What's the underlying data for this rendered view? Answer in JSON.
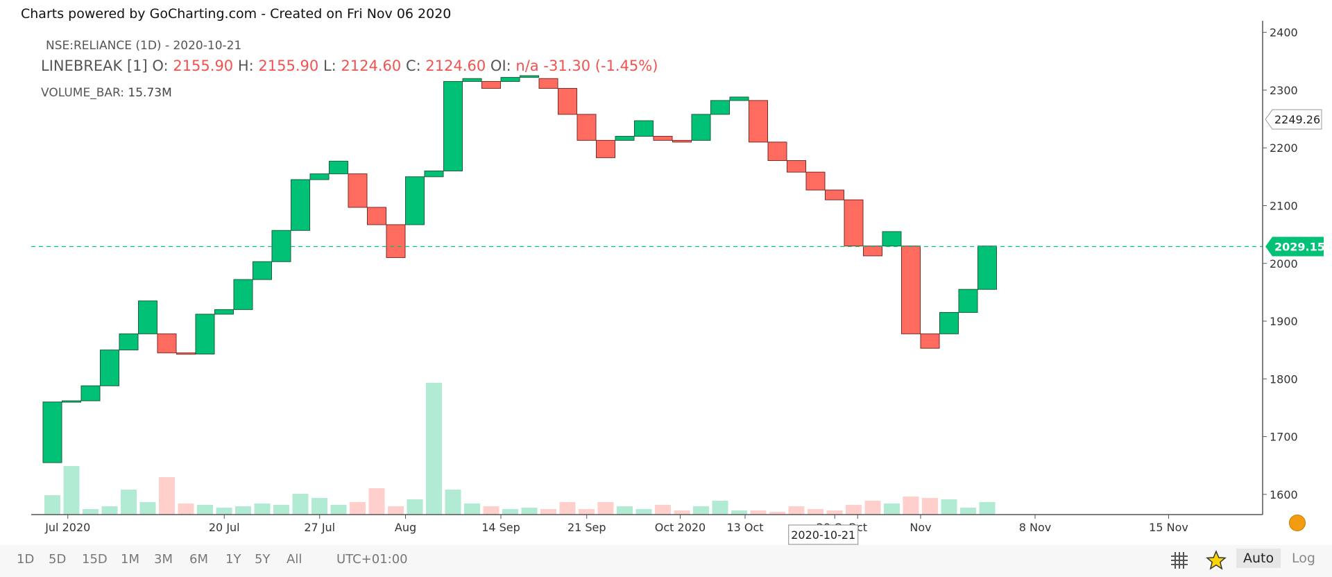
{
  "header": {
    "powered_by": "Charts powered by GoCharting.com - Created on Fri Nov 06 2020"
  },
  "legend": {
    "symbol": "NSE:RELIANCE (1D) - 2020-10-21",
    "study": "LINEBREAK [1]",
    "o_label": "O:",
    "o": "2155.90",
    "h_label": "H:",
    "h": "2155.90",
    "l_label": "L:",
    "l": "2124.60",
    "c_label": "C:",
    "c": "2124.60",
    "oi_label": "OI:",
    "oi": "n/a",
    "change": "-31.30",
    "change_pct": "(-1.45%)",
    "volume_label": "VOLUME_BAR:",
    "volume": "15.73M"
  },
  "toolbar": {
    "ranges": [
      "1D",
      "5D",
      "15D",
      "1M",
      "3M",
      "6M",
      "1Y",
      "5Y",
      "All"
    ],
    "timezone": "UTC+01:00",
    "auto": "Auto",
    "log": "Log"
  },
  "colors": {
    "up": "#00c176",
    "down": "#ff6b5f",
    "up_border": "#1b5e3a",
    "down_border": "#7a2a25",
    "vol_up": "#b2ebd4",
    "vol_down": "#ffcfcc",
    "last_price": "#00c176"
  },
  "chart_data": {
    "type": "linebreak",
    "y_range": [
      1565,
      2420
    ],
    "y_ticks": [
      1600,
      1700,
      1800,
      1900,
      2000,
      2100,
      2200,
      2300,
      2400
    ],
    "x_labels": [
      "Jul 2020",
      "20 Jul",
      "27 Jul",
      "Aug",
      "14 Sep",
      "21 Sep",
      "Oct 2020",
      "13 Oct",
      "20 Oct",
      "Oct",
      "Nov",
      "8 Nov",
      "15 Nov"
    ],
    "x_label_slots": [
      1.3,
      9.5,
      14.5,
      19.0,
      24.0,
      28.5,
      33.4,
      36.8,
      41.5,
      42.7,
      46.0,
      52.0,
      59.0
    ],
    "crosshair_label": "2020-10-21",
    "crosshair_slot": 40.9,
    "hover_price": "2249.26",
    "hover_price_value": 2249.26,
    "last_price": "2029.15",
    "last_price_value": 2029.15,
    "bricks": [
      {
        "open": 1655,
        "close": 1760
      },
      {
        "open": 1760,
        "close": 1762
      },
      {
        "open": 1762,
        "close": 1788
      },
      {
        "open": 1788,
        "close": 1850
      },
      {
        "open": 1850,
        "close": 1878
      },
      {
        "open": 1878,
        "close": 1935
      },
      {
        "open": 1878,
        "close": 1845
      },
      {
        "open": 1845,
        "close": 1843
      },
      {
        "open": 1843,
        "close": 1912
      },
      {
        "open": 1912,
        "close": 1920
      },
      {
        "open": 1920,
        "close": 1972
      },
      {
        "open": 1972,
        "close": 2003
      },
      {
        "open": 2003,
        "close": 2057
      },
      {
        "open": 2057,
        "close": 2145
      },
      {
        "open": 2145,
        "close": 2155
      },
      {
        "open": 2155,
        "close": 2177
      },
      {
        "open": 2155,
        "close": 2097
      },
      {
        "open": 2097,
        "close": 2067
      },
      {
        "open": 2067,
        "close": 2010
      },
      {
        "open": 2067,
        "close": 2150
      },
      {
        "open": 2150,
        "close": 2160
      },
      {
        "open": 2160,
        "close": 2315
      },
      {
        "open": 2315,
        "close": 2320
      },
      {
        "open": 2315,
        "close": 2303
      },
      {
        "open": 2315,
        "close": 2322
      },
      {
        "open": 2322,
        "close": 2325
      },
      {
        "open": 2320,
        "close": 2303
      },
      {
        "open": 2303,
        "close": 2258
      },
      {
        "open": 2258,
        "close": 2213
      },
      {
        "open": 2213,
        "close": 2183
      },
      {
        "open": 2213,
        "close": 2220
      },
      {
        "open": 2220,
        "close": 2247
      },
      {
        "open": 2220,
        "close": 2213
      },
      {
        "open": 2213,
        "close": 2210
      },
      {
        "open": 2213,
        "close": 2258
      },
      {
        "open": 2258,
        "close": 2282
      },
      {
        "open": 2282,
        "close": 2288
      },
      {
        "open": 2282,
        "close": 2210
      },
      {
        "open": 2210,
        "close": 2178
      },
      {
        "open": 2178,
        "close": 2158
      },
      {
        "open": 2158,
        "close": 2127
      },
      {
        "open": 2127,
        "close": 2110
      },
      {
        "open": 2110,
        "close": 2030
      },
      {
        "open": 2030,
        "close": 2013
      },
      {
        "open": 2030,
        "close": 2055
      },
      {
        "open": 2030,
        "close": 1878
      },
      {
        "open": 1878,
        "close": 1853
      },
      {
        "open": 1878,
        "close": 1915
      },
      {
        "open": 1915,
        "close": 1955
      },
      {
        "open": 1955,
        "close": 2030
      }
    ],
    "volumes": [
      {
        "v": 14,
        "up": true
      },
      {
        "v": 35,
        "up": true
      },
      {
        "v": 4,
        "up": true
      },
      {
        "v": 6,
        "up": true
      },
      {
        "v": 18,
        "up": true
      },
      {
        "v": 9,
        "up": true
      },
      {
        "v": 27,
        "up": false
      },
      {
        "v": 8,
        "up": false
      },
      {
        "v": 7,
        "up": true
      },
      {
        "v": 5,
        "up": true
      },
      {
        "v": 6,
        "up": true
      },
      {
        "v": 8,
        "up": true
      },
      {
        "v": 7,
        "up": true
      },
      {
        "v": 15,
        "up": true
      },
      {
        "v": 12,
        "up": true
      },
      {
        "v": 7,
        "up": true
      },
      {
        "v": 9,
        "up": false
      },
      {
        "v": 19,
        "up": false
      },
      {
        "v": 6,
        "up": false
      },
      {
        "v": 11,
        "up": true
      },
      {
        "v": 95,
        "up": true
      },
      {
        "v": 18,
        "up": true
      },
      {
        "v": 8,
        "up": true
      },
      {
        "v": 6,
        "up": false
      },
      {
        "v": 4,
        "up": true
      },
      {
        "v": 5,
        "up": true
      },
      {
        "v": 4,
        "up": false
      },
      {
        "v": 9,
        "up": false
      },
      {
        "v": 4,
        "up": false
      },
      {
        "v": 9,
        "up": false
      },
      {
        "v": 6,
        "up": true
      },
      {
        "v": 4,
        "up": true
      },
      {
        "v": 7,
        "up": false
      },
      {
        "v": 3,
        "up": false
      },
      {
        "v": 6,
        "up": true
      },
      {
        "v": 10,
        "up": true
      },
      {
        "v": 3,
        "up": true
      },
      {
        "v": 3,
        "up": false
      },
      {
        "v": 2,
        "up": false
      },
      {
        "v": 6,
        "up": false
      },
      {
        "v": 4,
        "up": false
      },
      {
        "v": 3,
        "up": false
      },
      {
        "v": 7,
        "up": false
      },
      {
        "v": 10,
        "up": false
      },
      {
        "v": 8,
        "up": true
      },
      {
        "v": 13,
        "up": false
      },
      {
        "v": 12,
        "up": false
      },
      {
        "v": 11,
        "up": true
      },
      {
        "v": 5,
        "up": true
      },
      {
        "v": 9,
        "up": true
      }
    ]
  }
}
